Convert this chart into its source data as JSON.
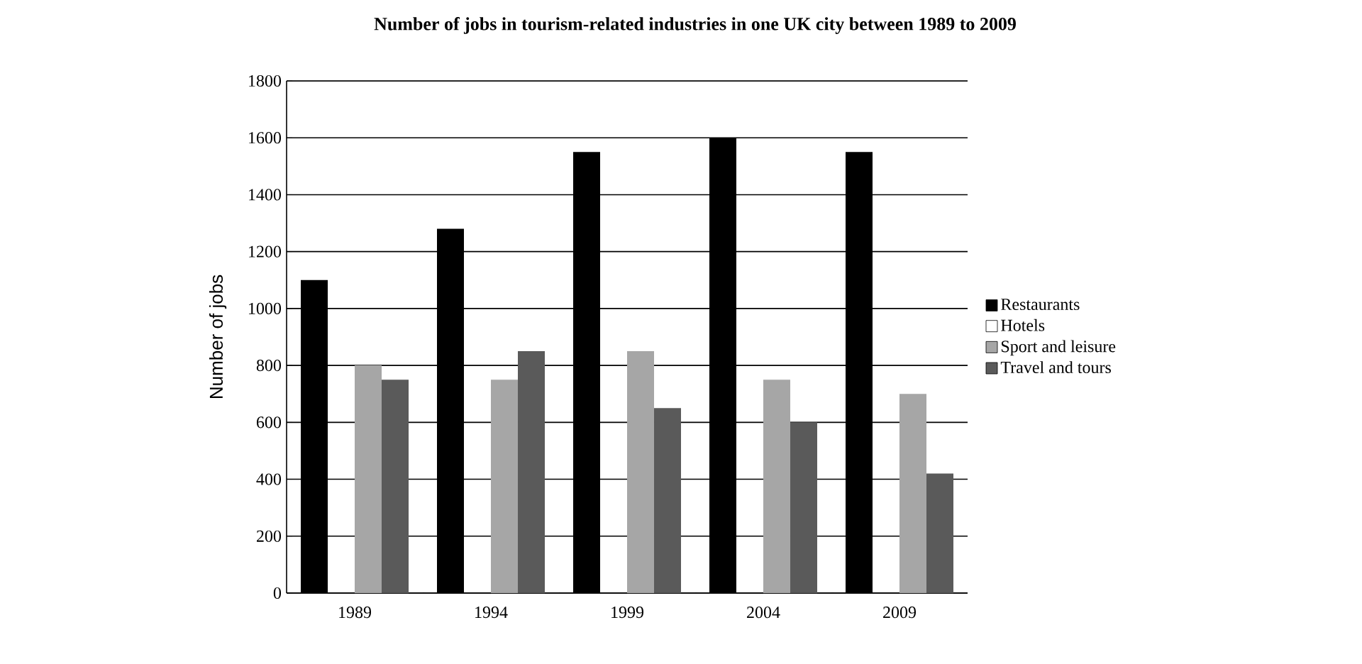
{
  "chart_data": {
    "type": "bar",
    "title": "Number of jobs in tourism-related industries in one UK city between 1989 to 2009",
    "ylabel": "Number of jobs",
    "categories": [
      "1989",
      "1994",
      "1999",
      "2004",
      "2009"
    ],
    "series": [
      {
        "name": "Restaurants",
        "color": "#000000",
        "values": [
          1100,
          1280,
          1550,
          1600,
          1550
        ]
      },
      {
        "name": "Hotels",
        "color": "#ffffff",
        "values": [
          null,
          null,
          null,
          null,
          null
        ]
      },
      {
        "name": "Sport and leisure",
        "color": "#a6a6a6",
        "values": [
          800,
          750,
          850,
          750,
          700
        ]
      },
      {
        "name": "Travel and tours",
        "color": "#5a5a5a",
        "values": [
          750,
          850,
          650,
          600,
          420
        ]
      }
    ],
    "ylim": [
      0,
      1800
    ],
    "yticks": [
      0,
      200,
      400,
      600,
      800,
      1000,
      1200,
      1400,
      1600,
      1800
    ],
    "grid": "y",
    "legend": "right"
  }
}
